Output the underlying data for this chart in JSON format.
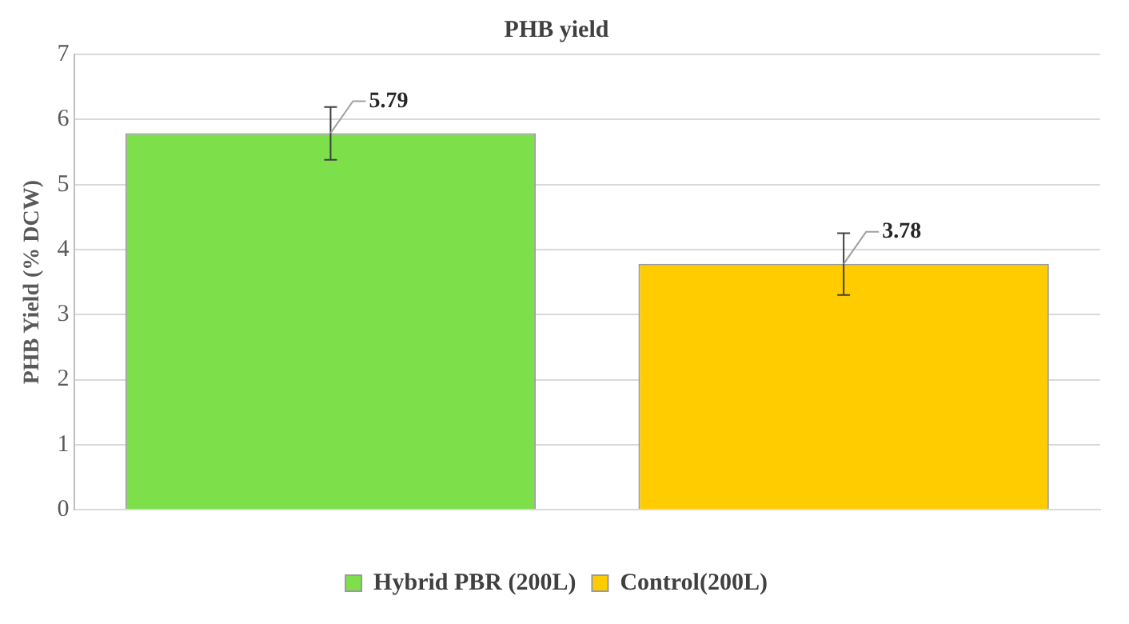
{
  "chart_data": {
    "type": "bar",
    "title": "PHB yield",
    "ylabel": "PHB Yield (% DCW)",
    "categories": [
      null,
      null
    ],
    "series": [
      {
        "name": "Hybrid PBR (200L)",
        "color": "#7ddf4a",
        "values": [
          5.79,
          null
        ],
        "errors": [
          [
            5.38,
            6.19
          ],
          null
        ]
      },
      {
        "name": "Control(200L)",
        "color": "#ffcc00",
        "values": [
          null,
          3.78
        ],
        "errors": [
          null,
          [
            3.3,
            4.25
          ]
        ]
      }
    ],
    "ylim": [
      0,
      7
    ],
    "yticks": [
      0,
      1,
      2,
      3,
      4,
      5,
      6,
      7
    ],
    "grid": "y",
    "legend": "bottom",
    "data_labels": true
  }
}
